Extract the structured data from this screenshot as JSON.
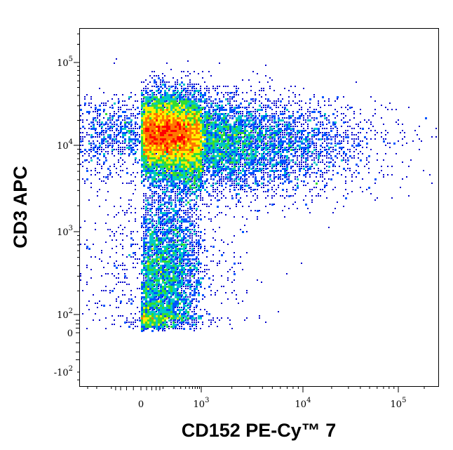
{
  "chart_data": {
    "type": "scatter",
    "subtype": "flow-cytometry-density-dot-plot",
    "title": "",
    "xlabel": "CD152 PE-Cy™ 7",
    "ylabel": "CD3 APC",
    "x_scale": "biexponential",
    "y_scale": "biexponential",
    "x_range": [
      -300,
      200000
    ],
    "y_range": [
      -300,
      250000
    ],
    "grid": false,
    "legend": "none",
    "x_ticks": [
      {
        "value": 0,
        "base": "0",
        "exp": ""
      },
      {
        "value": 1000,
        "base": "10",
        "exp": "3"
      },
      {
        "value": 10000,
        "base": "10",
        "exp": "4"
      },
      {
        "value": 100000,
        "base": "10",
        "exp": "5"
      }
    ],
    "y_ticks": [
      {
        "value": -100,
        "base": "-10",
        "exp": "2"
      },
      {
        "value": 0,
        "base": "0",
        "exp": ""
      },
      {
        "value": 100,
        "base": "10",
        "exp": "2"
      },
      {
        "value": 1000,
        "base": "10",
        "exp": "3"
      },
      {
        "value": 10000,
        "base": "10",
        "exp": "4"
      },
      {
        "value": 100000,
        "base": "10",
        "exp": "5"
      }
    ],
    "density_colors": [
      "#0000cc",
      "#0055ff",
      "#00c8c8",
      "#33dd33",
      "#ffee00",
      "#ff7700",
      "#ff0000"
    ],
    "populations": [
      {
        "name": "",
        "x_center": 150,
        "y_center": 14000,
        "x_spread_decades": 0.55,
        "y_spread_decades": 0.22,
        "count": 9000
      },
      {
        "name": "",
        "x_center": 600,
        "y_center": 11000,
        "x_spread_decades": 0.6,
        "y_spread_decades": 0.3,
        "count": 5000
      },
      {
        "name": "",
        "x_center": 3000,
        "y_center": 9000,
        "x_spread_decades": 0.5,
        "y_spread_decades": 0.3,
        "count": 2500
      },
      {
        "name": "",
        "x_center": 20000,
        "y_center": 10000,
        "x_spread_decades": 0.45,
        "y_spread_decades": 0.25,
        "count": 500
      },
      {
        "name": "",
        "x_center": 150,
        "y_center": 400,
        "x_spread_decades": 0.5,
        "y_spread_decades": 0.45,
        "count": 3500
      },
      {
        "name": "",
        "x_center": 60,
        "y_center": 90,
        "x_spread_decades": 0.6,
        "y_spread_decades": 0.35,
        "count": 900
      }
    ]
  }
}
